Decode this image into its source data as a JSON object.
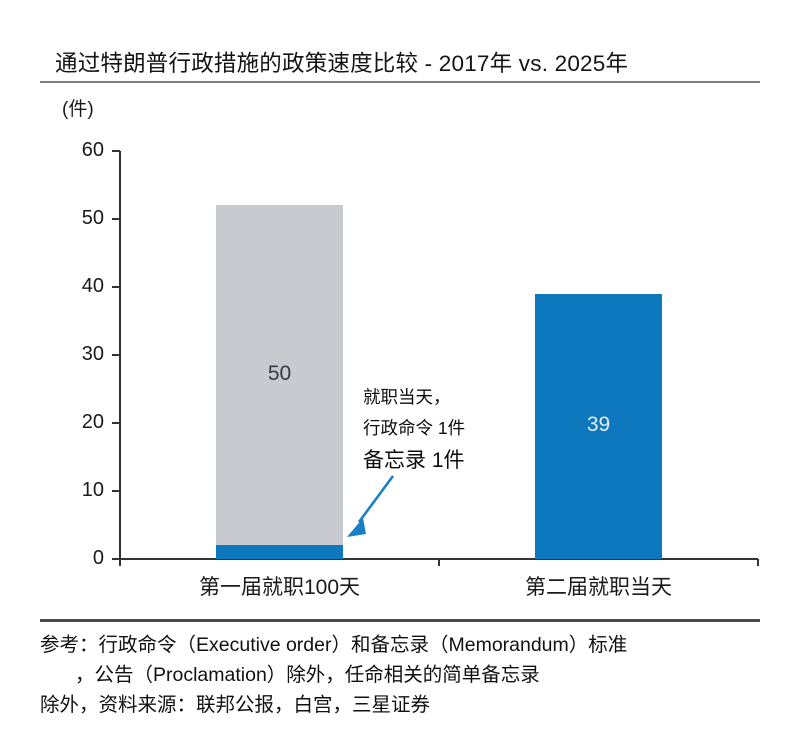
{
  "header": {
    "title": "通过特朗普行政措施的政策速度比较 - 2017年 vs. 2025年"
  },
  "chart_data": {
    "type": "bar",
    "stacked": true,
    "title": "通过特朗普行政措施的政策速度比较 - 2017年 vs. 2025年",
    "unit_label": "(件)",
    "ylim": [
      0,
      60
    ],
    "yticks": [
      0,
      10,
      20,
      30,
      40,
      50,
      60
    ],
    "grid": false,
    "legend": "none",
    "categories": [
      "第一届就职100天",
      "第二届就职当天"
    ],
    "bars": [
      {
        "category": "第一届就职100天",
        "segments": [
          {
            "value": 2,
            "color": "#0E78BE",
            "label": ""
          },
          {
            "value": 50,
            "color": "#C9CACF",
            "label": "50",
            "label_color": "#333A46"
          }
        ]
      },
      {
        "category": "第二届就职当天",
        "segments": [
          {
            "value": 39,
            "color": "#0E78BE",
            "label": "39",
            "label_color": "#E7EDF3"
          }
        ]
      }
    ],
    "annotation": {
      "lines": [
        "就职当天，",
        "行政命令 1件",
        "备忘录 1件"
      ],
      "arrow_color": "#1B7FC4",
      "points_to": "blue segment of first bar"
    }
  },
  "footer": {
    "lines": [
      "参考：行政命令（Executive order）和备忘录（Memorandum）标准",
      "，公告（Proclamation）除外，任命相关的简单备忘录",
      "除外，资料来源：联邦公报，白宫，三星证券"
    ]
  },
  "colors": {
    "bar_blue": "#0E78BE",
    "bar_gray": "#C9CACF",
    "axis": "#333333",
    "title_rule": "#7F7F7F",
    "footer_rule": "#4A4A4A",
    "text": "#141414"
  }
}
